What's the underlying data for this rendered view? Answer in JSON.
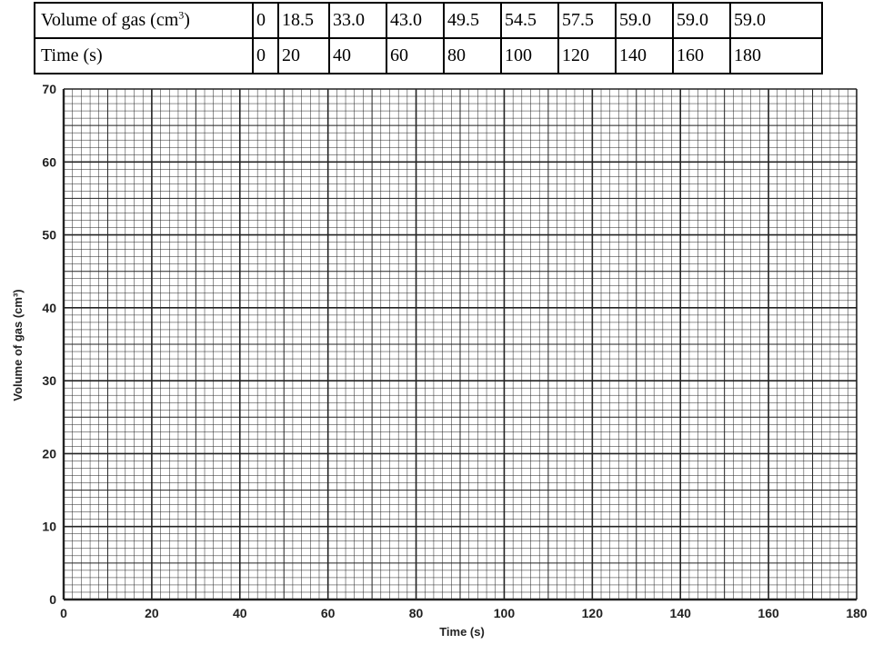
{
  "table": {
    "row_volume": {
      "label": "Volume of gas (cm",
      "label_sup": "3",
      "label_close": ")",
      "values": [
        "0",
        "18.5",
        "33.0",
        "43.0",
        "49.5",
        "54.5",
        "57.5",
        "59.0",
        "59.0",
        "59.0"
      ]
    },
    "row_time": {
      "label": "Time (s)",
      "values": [
        "0",
        "20",
        "40",
        "60",
        "80",
        "100",
        "120",
        "140",
        "160",
        "180"
      ]
    }
  },
  "chart_data": {
    "type": "table",
    "title": "",
    "xlabel": "Time (s)",
    "ylabel": "Volume of gas (cm³)",
    "xlim": [
      0,
      180
    ],
    "ylim": [
      0,
      70
    ],
    "x_ticks": [
      "0",
      "20",
      "40",
      "60",
      "80",
      "100",
      "120",
      "140",
      "160",
      "180"
    ],
    "y_ticks": [
      "0",
      "10",
      "20",
      "30",
      "40",
      "50",
      "60",
      "70"
    ],
    "x": [
      0,
      20,
      40,
      60,
      80,
      100,
      120,
      140,
      160,
      180
    ],
    "series": [
      {
        "values": [
          0,
          18.5,
          33.0,
          43.0,
          49.5,
          54.5,
          57.5,
          59.0,
          59.0,
          59.0
        ]
      }
    ],
    "grid": true,
    "plotted": false
  }
}
